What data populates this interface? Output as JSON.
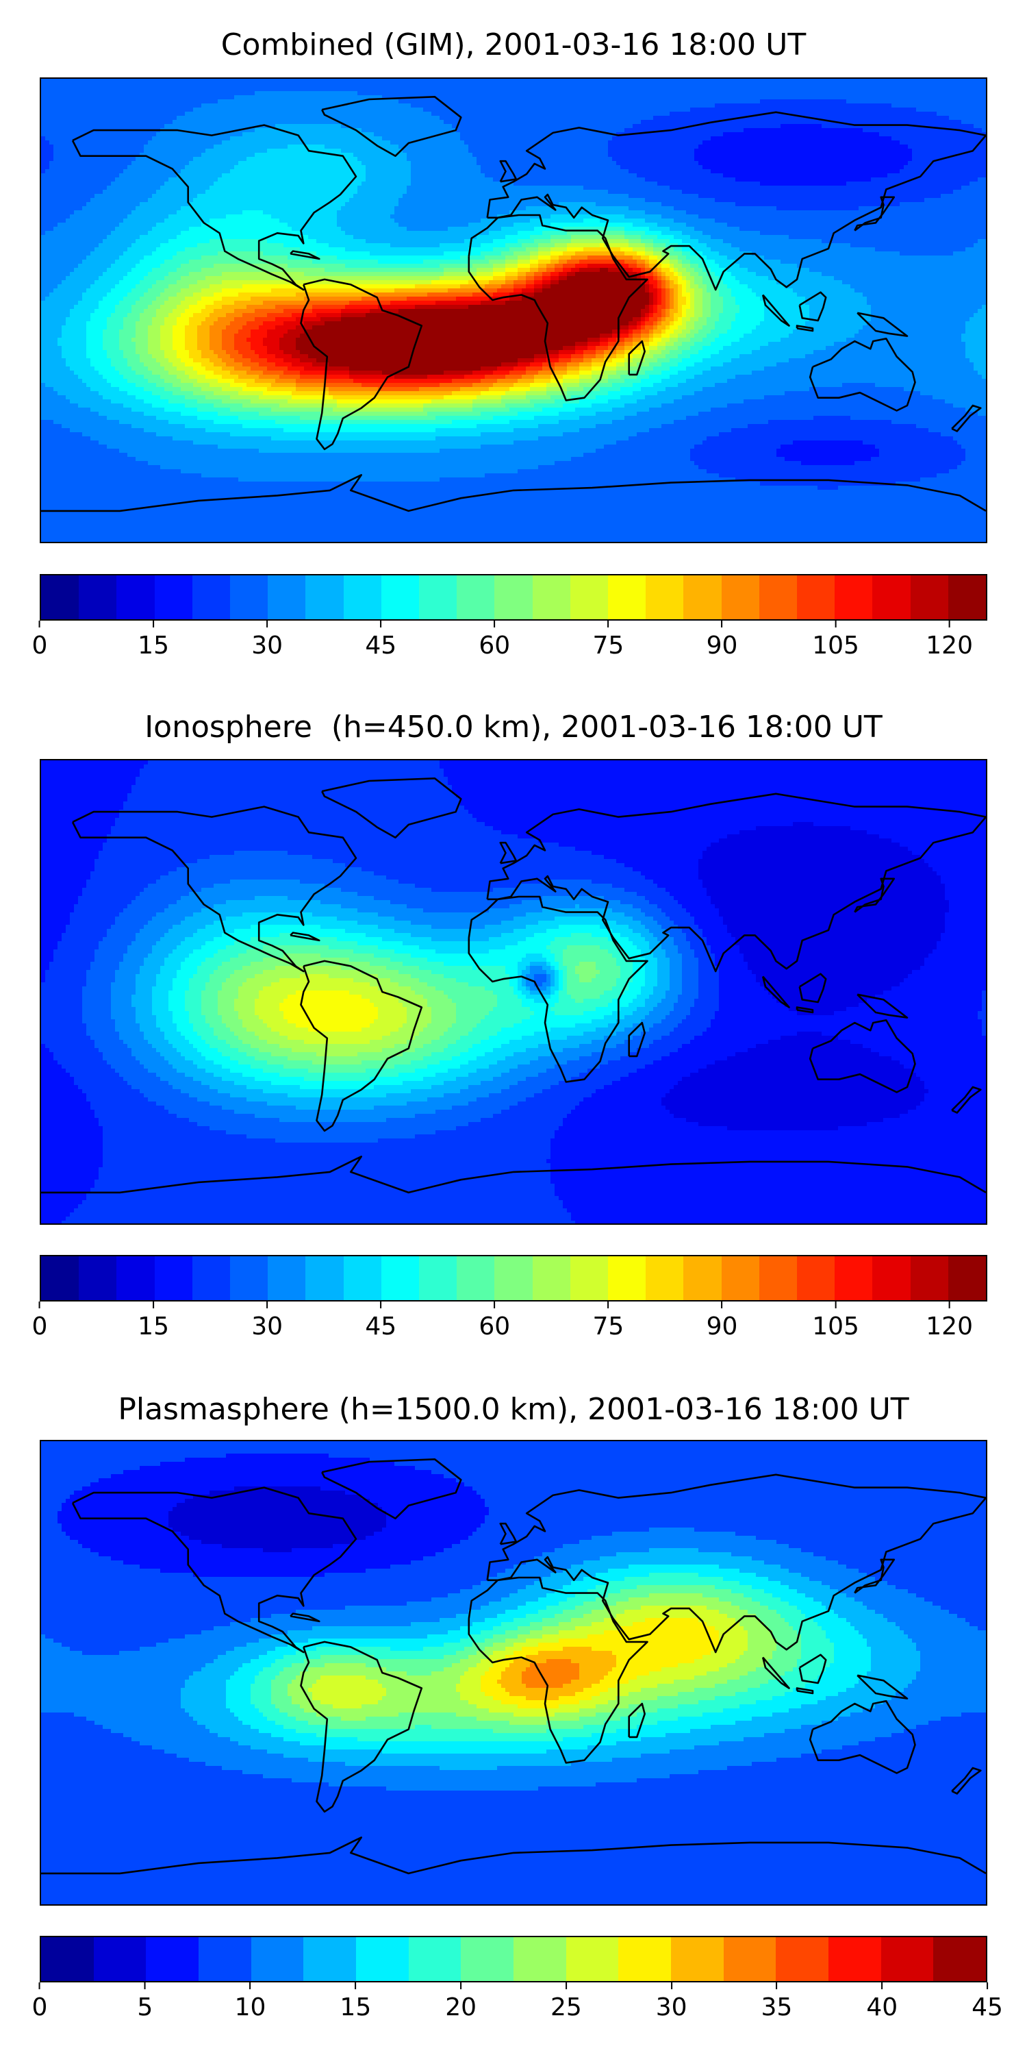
{
  "panels": [
    {
      "title": "Combined (GIM), 2001-03-16 18:00 UT",
      "colorbar": {
        "min": 0,
        "max": 125,
        "bins": 25,
        "ticks": [
          "0",
          "15",
          "30",
          "45",
          "60",
          "75",
          "90",
          "105",
          "120"
        ],
        "tick_values": [
          0,
          15,
          30,
          45,
          60,
          75,
          90,
          105,
          120
        ]
      },
      "field": {
        "background": 0.23,
        "blobs": [
          {
            "lon": -75,
            "lat": 55,
            "sx": 30,
            "sy": 14,
            "a": 0.1
          },
          {
            "lon": -60,
            "lat": -15,
            "sx": 55,
            "sy": 18,
            "a": 0.62
          },
          {
            "lon": -20,
            "lat": -10,
            "sx": 35,
            "sy": 14,
            "a": 0.45
          },
          {
            "lon": 25,
            "lat": 5,
            "sx": 25,
            "sy": 18,
            "a": 0.4
          },
          {
            "lon": 40,
            "lat": 8,
            "sx": 18,
            "sy": 12,
            "a": 0.42
          },
          {
            "lon": -110,
            "lat": 10,
            "sx": 30,
            "sy": 25,
            "a": 0.18
          },
          {
            "lon": 110,
            "lat": 60,
            "sx": 50,
            "sy": 14,
            "a": -0.1
          },
          {
            "lon": 120,
            "lat": -55,
            "sx": 40,
            "sy": 10,
            "a": -0.08
          },
          {
            "lon": 80,
            "lat": 0,
            "sx": 40,
            "sy": 15,
            "a": 0.12
          }
        ]
      }
    },
    {
      "title": "Ionosphere  (h=450.0 km), 2001-03-16 18:00 UT",
      "colorbar": {
        "min": 0,
        "max": 125,
        "bins": 25,
        "ticks": [
          "0",
          "15",
          "30",
          "45",
          "60",
          "75",
          "90",
          "105",
          "120"
        ],
        "tick_values": [
          0,
          15,
          30,
          45,
          60,
          75,
          90,
          105,
          120
        ]
      },
      "field": {
        "background": 0.16,
        "blobs": [
          {
            "lon": -55,
            "lat": -10,
            "sx": 45,
            "sy": 22,
            "a": 0.38
          },
          {
            "lon": -100,
            "lat": 5,
            "sx": 35,
            "sy": 28,
            "a": 0.18
          },
          {
            "lon": 30,
            "lat": 10,
            "sx": 25,
            "sy": 18,
            "a": 0.3
          },
          {
            "lon": 10,
            "lat": 5,
            "sx": 6,
            "sy": 6,
            "a": -0.25
          },
          {
            "lon": 110,
            "lat": 30,
            "sx": 50,
            "sy": 30,
            "a": -0.08
          },
          {
            "lon": 100,
            "lat": -40,
            "sx": 60,
            "sy": 15,
            "a": -0.06
          }
        ]
      }
    },
    {
      "title": "Plasmasphere (h=1500.0 km), 2001-03-16 18:00 UT",
      "colorbar": {
        "min": 0,
        "max": 45,
        "bins": 18,
        "ticks": [
          "0",
          "5",
          "10",
          "15",
          "20",
          "25",
          "30",
          "35",
          "40",
          "45"
        ],
        "tick_values": [
          0,
          5,
          10,
          15,
          20,
          25,
          30,
          35,
          40,
          45
        ]
      },
      "field": {
        "background": 0.18,
        "blobs": [
          {
            "lon": -20,
            "lat": -10,
            "sx": 70,
            "sy": 18,
            "a": 0.3
          },
          {
            "lon": 60,
            "lat": 18,
            "sx": 35,
            "sy": 18,
            "a": 0.38
          },
          {
            "lon": 10,
            "lat": 0,
            "sx": 20,
            "sy": 12,
            "a": 0.25
          },
          {
            "lon": -70,
            "lat": -5,
            "sx": 20,
            "sy": 12,
            "a": 0.18
          },
          {
            "lon": 120,
            "lat": 5,
            "sx": 40,
            "sy": 18,
            "a": 0.12
          },
          {
            "lon": -90,
            "lat": 60,
            "sx": 40,
            "sy": 12,
            "a": -0.12
          }
        ]
      }
    }
  ]
}
